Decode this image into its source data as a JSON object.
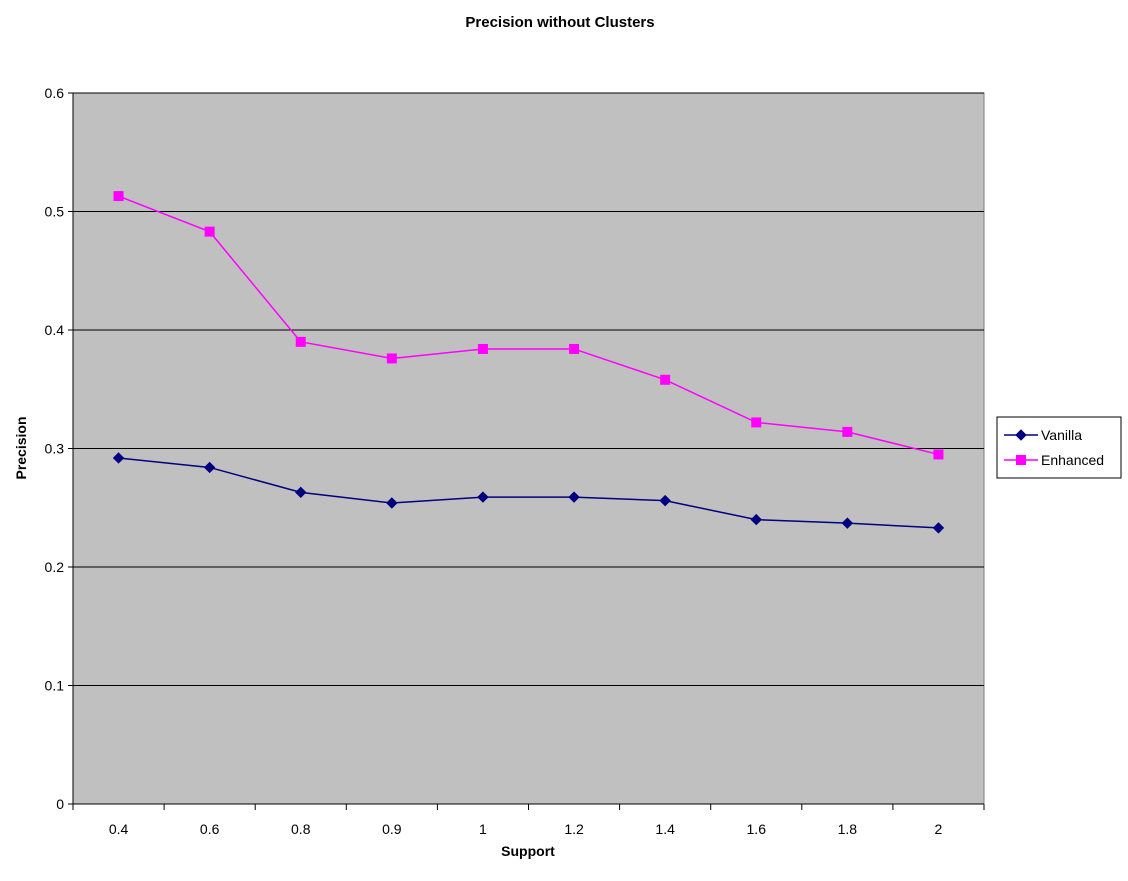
{
  "chart_data": {
    "type": "line",
    "title": "Precision without Clusters",
    "xlabel": "Support",
    "ylabel": "Precision",
    "categories": [
      "0.4",
      "0.6",
      "0.8",
      "0.9",
      "1",
      "1.2",
      "1.4",
      "1.6",
      "1.8",
      "2"
    ],
    "yticks": [
      "0",
      "0.1",
      "0.2",
      "0.3",
      "0.4",
      "0.5",
      "0.6"
    ],
    "ylim": [
      0,
      0.6
    ],
    "grid": true,
    "legend_position": "right",
    "plot_background": "#c0c0c0",
    "series": [
      {
        "name": "Vanilla",
        "color": "#000080",
        "marker": "diamond",
        "values": [
          0.292,
          0.284,
          0.263,
          0.254,
          0.259,
          0.259,
          0.256,
          0.24,
          0.237,
          0.233
        ]
      },
      {
        "name": "Enhanced",
        "color": "#ff00ff",
        "marker": "square",
        "values": [
          0.513,
          0.483,
          0.39,
          0.376,
          0.384,
          0.384,
          0.358,
          0.322,
          0.314,
          0.295
        ]
      }
    ]
  }
}
